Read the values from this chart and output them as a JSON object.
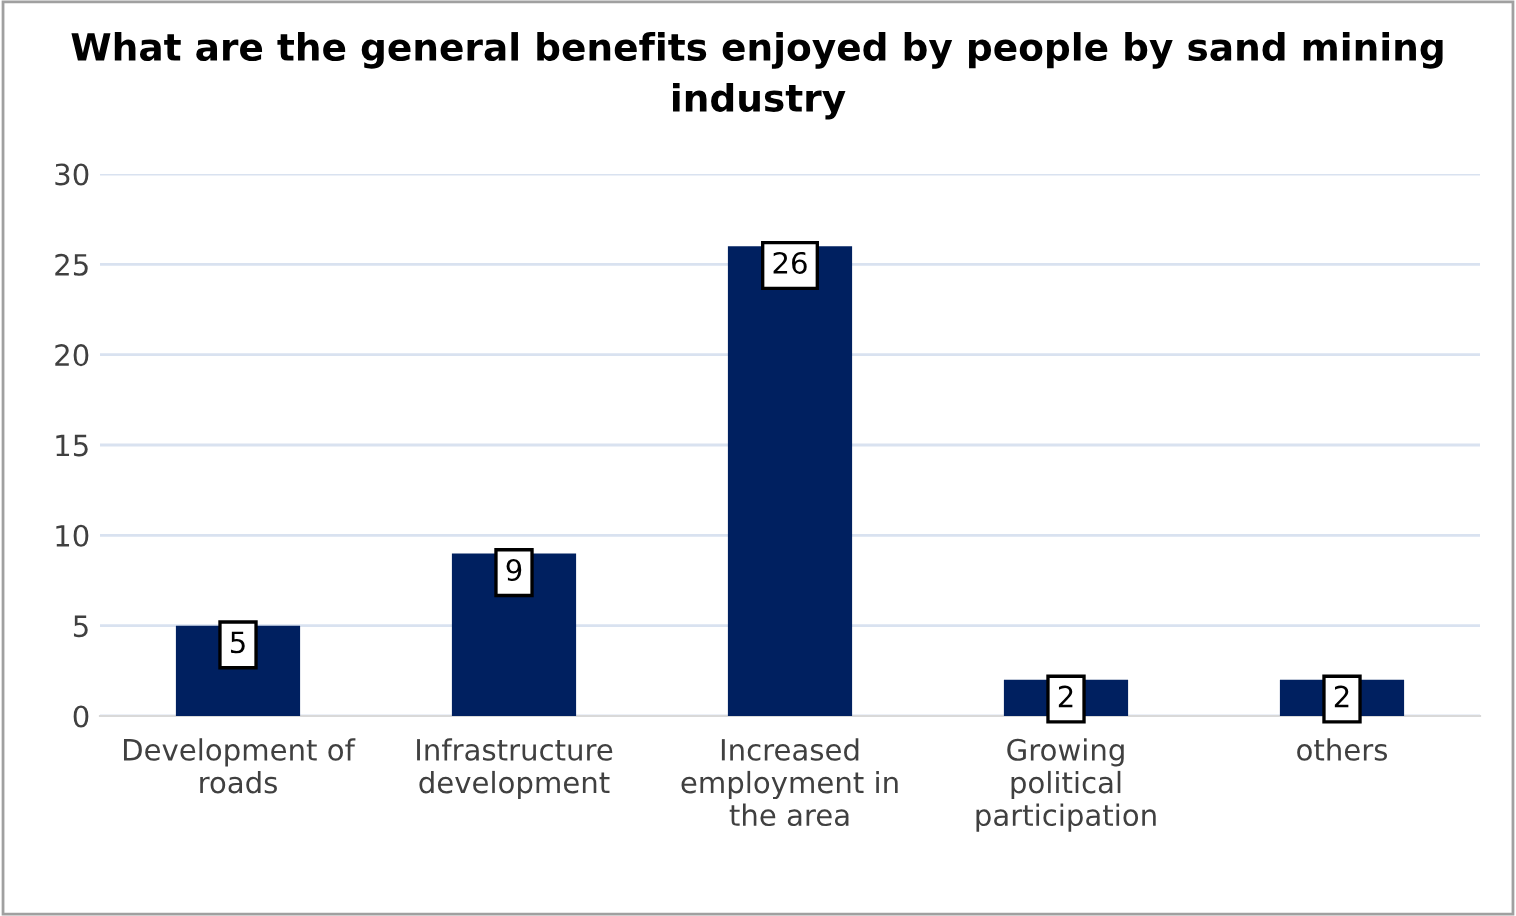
{
  "chart_data": {
    "type": "bar",
    "title": "What are the general benefits enjoyed by people by sand mining industry",
    "categories": [
      "Development of\nroads",
      "Infrastructure\ndevelopment",
      "Increased\nemployment in\nthe area",
      "Growing\npolitical\nparticipation",
      "others"
    ],
    "values": [
      5,
      9,
      26,
      2,
      2
    ],
    "color": "#002060",
    "ylim": [
      0,
      30
    ],
    "yticks": [
      0,
      5,
      10,
      15,
      20,
      25,
      30
    ],
    "grid": "y",
    "data_labels": true
  }
}
